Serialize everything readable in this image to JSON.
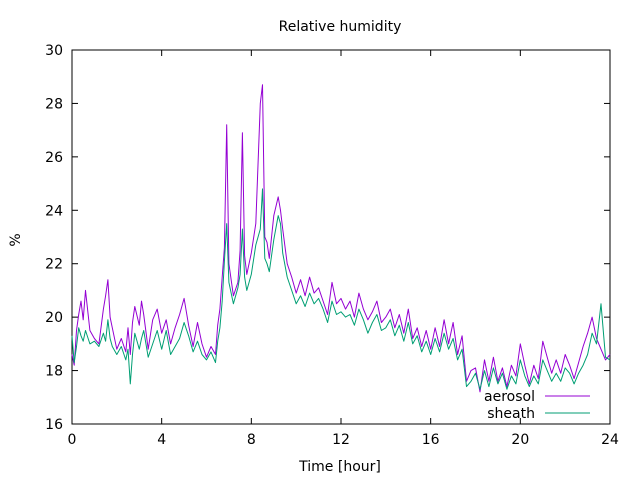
{
  "chart_data": {
    "type": "line",
    "title": "Relative humidity",
    "xlabel": "Time [hour]",
    "ylabel": "%",
    "xlim": [
      0,
      24
    ],
    "ylim": [
      16,
      30
    ],
    "xticks": [
      0,
      4,
      8,
      12,
      16,
      20,
      24
    ],
    "yticks": [
      16,
      18,
      20,
      22,
      24,
      26,
      28,
      30
    ],
    "grid": false,
    "legend_position": "bottom-right",
    "series": [
      {
        "name": "aerosol",
        "color": "#9400d3",
        "x": [
          0.0,
          0.1,
          0.2,
          0.3,
          0.4,
          0.5,
          0.6,
          0.8,
          1.0,
          1.2,
          1.4,
          1.5,
          1.6,
          1.7,
          1.8,
          2.0,
          2.2,
          2.4,
          2.5,
          2.6,
          2.7,
          2.8,
          3.0,
          3.1,
          3.2,
          3.4,
          3.6,
          3.8,
          4.0,
          4.2,
          4.4,
          4.6,
          4.8,
          5.0,
          5.2,
          5.4,
          5.6,
          5.8,
          6.0,
          6.2,
          6.4,
          6.5,
          6.6,
          6.7,
          6.8,
          6.9,
          7.0,
          7.2,
          7.4,
          7.5,
          7.6,
          7.7,
          7.8,
          8.0,
          8.2,
          8.4,
          8.5,
          8.6,
          8.7,
          8.8,
          9.0,
          9.2,
          9.3,
          9.4,
          9.6,
          9.8,
          10.0,
          10.2,
          10.4,
          10.6,
          10.8,
          11.0,
          11.2,
          11.4,
          11.6,
          11.8,
          12.0,
          12.2,
          12.4,
          12.6,
          12.8,
          13.0,
          13.2,
          13.4,
          13.6,
          13.8,
          14.0,
          14.2,
          14.4,
          14.6,
          14.8,
          15.0,
          15.2,
          15.4,
          15.6,
          15.8,
          16.0,
          16.2,
          16.4,
          16.6,
          16.8,
          17.0,
          17.2,
          17.4,
          17.6,
          17.8,
          18.0,
          18.2,
          18.4,
          18.6,
          18.8,
          19.0,
          19.2,
          19.4,
          19.6,
          19.8,
          20.0,
          20.2,
          20.4,
          20.6,
          20.8,
          21.0,
          21.2,
          21.4,
          21.6,
          21.8,
          22.0,
          22.2,
          22.4,
          22.6,
          22.8,
          23.0,
          23.2,
          23.4,
          23.6,
          23.8,
          24.0
        ],
        "values": [
          18.6,
          18.2,
          19.5,
          20.1,
          20.6,
          19.9,
          21.0,
          19.5,
          19.2,
          19.0,
          20.3,
          20.8,
          21.4,
          20.0,
          19.6,
          18.8,
          19.2,
          18.7,
          19.6,
          18.6,
          19.8,
          20.4,
          19.7,
          20.6,
          20.1,
          18.8,
          19.9,
          20.3,
          19.4,
          19.9,
          19.0,
          19.6,
          20.1,
          20.7,
          19.7,
          18.9,
          19.8,
          19.0,
          18.5,
          18.9,
          18.6,
          19.7,
          20.3,
          21.5,
          22.6,
          27.2,
          22.0,
          20.8,
          21.3,
          22.5,
          26.9,
          22.3,
          21.6,
          22.4,
          23.5,
          28.0,
          28.7,
          23.0,
          22.8,
          22.2,
          23.8,
          24.5,
          24.0,
          23.3,
          22.0,
          21.5,
          20.9,
          21.4,
          20.8,
          21.5,
          20.9,
          21.1,
          20.6,
          20.1,
          21.3,
          20.5,
          20.7,
          20.3,
          20.6,
          20.0,
          20.9,
          20.3,
          19.9,
          20.2,
          20.6,
          19.8,
          20.0,
          20.3,
          19.6,
          20.1,
          19.4,
          20.3,
          19.2,
          19.6,
          18.9,
          19.5,
          18.8,
          19.6,
          18.9,
          19.9,
          19.0,
          19.8,
          18.6,
          19.3,
          17.6,
          18.0,
          18.1,
          17.2,
          18.4,
          17.6,
          18.5,
          17.6,
          18.1,
          17.4,
          18.2,
          17.8,
          19.0,
          18.2,
          17.5,
          18.2,
          17.7,
          19.1,
          18.5,
          17.9,
          18.4,
          17.9,
          18.6,
          18.2,
          17.7,
          18.3,
          18.9,
          19.4,
          20.0,
          19.2,
          18.8,
          18.4,
          18.6
        ]
      },
      {
        "name": "sheath",
        "color": "#009e73",
        "x": [
          0.0,
          0.1,
          0.2,
          0.3,
          0.4,
          0.5,
          0.6,
          0.8,
          1.0,
          1.2,
          1.4,
          1.5,
          1.6,
          1.7,
          1.8,
          2.0,
          2.2,
          2.4,
          2.5,
          2.6,
          2.7,
          2.8,
          3.0,
          3.1,
          3.2,
          3.4,
          3.6,
          3.8,
          4.0,
          4.2,
          4.4,
          4.6,
          4.8,
          5.0,
          5.2,
          5.4,
          5.6,
          5.8,
          6.0,
          6.2,
          6.4,
          6.5,
          6.6,
          6.7,
          6.8,
          6.9,
          7.0,
          7.2,
          7.4,
          7.5,
          7.6,
          7.7,
          7.8,
          8.0,
          8.2,
          8.4,
          8.5,
          8.6,
          8.7,
          8.8,
          9.0,
          9.2,
          9.3,
          9.4,
          9.6,
          9.8,
          10.0,
          10.2,
          10.4,
          10.6,
          10.8,
          11.0,
          11.2,
          11.4,
          11.6,
          11.8,
          12.0,
          12.2,
          12.4,
          12.6,
          12.8,
          13.0,
          13.2,
          13.4,
          13.6,
          13.8,
          14.0,
          14.2,
          14.4,
          14.6,
          14.8,
          15.0,
          15.2,
          15.4,
          15.6,
          15.8,
          16.0,
          16.2,
          16.4,
          16.6,
          16.8,
          17.0,
          17.2,
          17.4,
          17.6,
          17.8,
          18.0,
          18.2,
          18.4,
          18.6,
          18.8,
          19.0,
          19.2,
          19.4,
          19.6,
          19.8,
          20.0,
          20.2,
          20.4,
          20.6,
          20.8,
          21.0,
          21.2,
          21.4,
          21.6,
          21.8,
          22.0,
          22.2,
          22.4,
          22.6,
          22.8,
          23.0,
          23.2,
          23.4,
          23.6,
          23.8,
          24.0
        ],
        "values": [
          19.3,
          18.3,
          18.9,
          19.6,
          19.3,
          19.1,
          19.5,
          19.0,
          19.1,
          18.9,
          19.4,
          19.1,
          19.9,
          19.2,
          18.9,
          18.6,
          18.9,
          18.4,
          18.8,
          17.5,
          18.6,
          19.4,
          18.8,
          19.2,
          19.5,
          18.5,
          19.0,
          19.5,
          18.8,
          19.5,
          18.6,
          18.9,
          19.2,
          19.8,
          19.3,
          18.7,
          19.1,
          18.6,
          18.4,
          18.7,
          18.3,
          19.1,
          19.6,
          20.6,
          22.1,
          23.5,
          21.3,
          20.5,
          21.1,
          21.6,
          23.3,
          21.5,
          21.0,
          21.6,
          22.7,
          23.3,
          24.8,
          22.2,
          22.0,
          21.7,
          22.9,
          23.8,
          23.5,
          22.4,
          21.5,
          21.0,
          20.5,
          20.8,
          20.4,
          20.9,
          20.5,
          20.7,
          20.3,
          19.8,
          20.6,
          20.1,
          20.2,
          20.0,
          20.1,
          19.7,
          20.3,
          19.9,
          19.4,
          19.8,
          20.1,
          19.5,
          19.6,
          19.9,
          19.3,
          19.7,
          19.1,
          19.8,
          19.0,
          19.3,
          18.7,
          19.1,
          18.6,
          19.2,
          18.7,
          19.4,
          18.8,
          19.2,
          18.4,
          18.8,
          17.4,
          17.6,
          17.9,
          17.3,
          18.0,
          17.4,
          18.1,
          17.5,
          17.9,
          17.3,
          17.8,
          17.5,
          18.4,
          17.8,
          17.4,
          17.8,
          17.5,
          18.4,
          18.0,
          17.6,
          17.9,
          17.6,
          18.1,
          17.9,
          17.5,
          17.9,
          18.2,
          18.6,
          19.4,
          19.0,
          20.5,
          18.5,
          18.4
        ]
      }
    ]
  }
}
